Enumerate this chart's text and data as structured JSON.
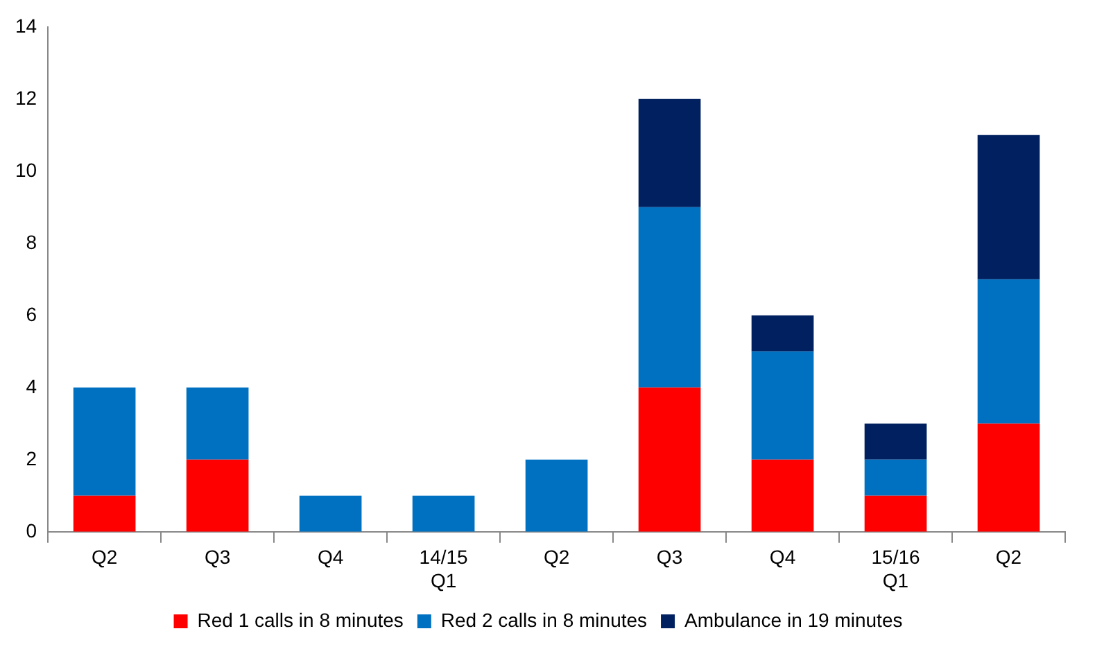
{
  "chart_data": {
    "type": "bar",
    "stacked": true,
    "categories": [
      "Q2",
      "Q3",
      "Q4",
      "14/15\nQ1",
      "Q2",
      "Q3",
      "Q4",
      "15/16\nQ1",
      "Q2"
    ],
    "series": [
      {
        "name": "Red 1 calls in 8 minutes",
        "color": "#ff0000",
        "values": [
          1,
          2,
          0,
          0,
          0,
          4,
          2,
          1,
          3
        ]
      },
      {
        "name": "Red 2 calls in 8 minutes",
        "color": "#0070c0",
        "values": [
          3,
          2,
          1,
          1,
          2,
          5,
          3,
          1,
          4
        ]
      },
      {
        "name": "Ambulance in 19 minutes",
        "color": "#002060",
        "values": [
          0,
          0,
          0,
          0,
          0,
          3,
          1,
          1,
          4
        ]
      }
    ],
    "ylim": [
      0,
      14
    ],
    "yticks": [
      0,
      2,
      4,
      6,
      8,
      10,
      12,
      14
    ],
    "grid": false,
    "legend": "bottom"
  }
}
